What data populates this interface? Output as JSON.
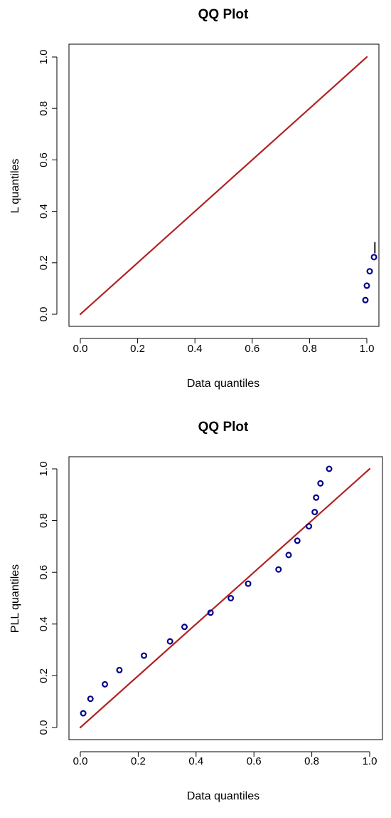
{
  "colors": {
    "points": "#00008b",
    "reference_line": "#b22222"
  },
  "chart_data": [
    {
      "type": "scatter",
      "title": "QQ Plot",
      "xlabel": "Data quantiles",
      "ylabel": "L quantiles",
      "xlim": [
        0,
        1.0
      ],
      "ylim": [
        0,
        1.0
      ],
      "xticks": [
        "0.0",
        "0.2",
        "0.4",
        "0.6",
        "0.8",
        "1.0"
      ],
      "yticks": [
        "0.0",
        "0.2",
        "0.4",
        "0.6",
        "0.8",
        "1.0"
      ],
      "reference_line": {
        "from": [
          0,
          0
        ],
        "to": [
          1,
          1
        ]
      },
      "points": [
        {
          "x": 0.995,
          "y": 0.055
        },
        {
          "x": 1.0,
          "y": 0.111
        },
        {
          "x": 1.01,
          "y": 0.167
        },
        {
          "x": 1.025,
          "y": 0.222
        }
      ],
      "clipped_extension": [
        1.028,
        0.278
      ]
    },
    {
      "type": "scatter",
      "title": "QQ Plot",
      "xlabel": "Data quantiles",
      "ylabel": "PLL quantiles",
      "xlim": [
        0,
        1.0
      ],
      "ylim": [
        0,
        1.0
      ],
      "xticks": [
        "0.0",
        "0.2",
        "0.4",
        "0.6",
        "0.8",
        "1.0"
      ],
      "yticks": [
        "0.0",
        "0.2",
        "0.4",
        "0.6",
        "0.8",
        "1.0"
      ],
      "reference_line": {
        "from": [
          0,
          0
        ],
        "to": [
          1,
          1
        ]
      },
      "points": [
        {
          "x": 0.01,
          "y": 0.055
        },
        {
          "x": 0.035,
          "y": 0.111
        },
        {
          "x": 0.085,
          "y": 0.167
        },
        {
          "x": 0.135,
          "y": 0.222
        },
        {
          "x": 0.22,
          "y": 0.278
        },
        {
          "x": 0.31,
          "y": 0.333
        },
        {
          "x": 0.36,
          "y": 0.389
        },
        {
          "x": 0.45,
          "y": 0.444
        },
        {
          "x": 0.52,
          "y": 0.5
        },
        {
          "x": 0.58,
          "y": 0.556
        },
        {
          "x": 0.685,
          "y": 0.611
        },
        {
          "x": 0.72,
          "y": 0.667
        },
        {
          "x": 0.75,
          "y": 0.722
        },
        {
          "x": 0.79,
          "y": 0.778
        },
        {
          "x": 0.81,
          "y": 0.833
        },
        {
          "x": 0.815,
          "y": 0.889
        },
        {
          "x": 0.83,
          "y": 0.944
        },
        {
          "x": 0.86,
          "y": 1.0
        }
      ]
    }
  ]
}
